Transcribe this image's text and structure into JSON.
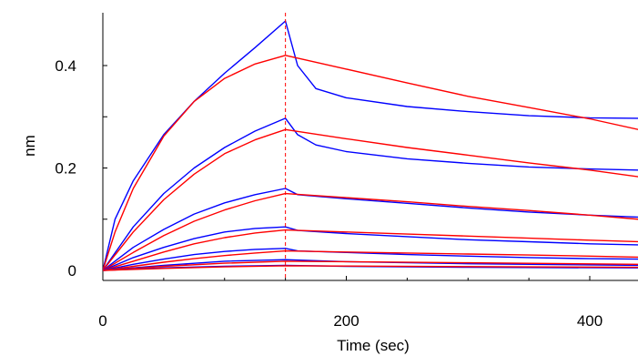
{
  "chart_data": {
    "type": "line",
    "title": "",
    "xlabel": "Time (sec)",
    "ylabel": "nm",
    "xlim": [
      0,
      440
    ],
    "ylim": [
      -0.01,
      0.495
    ],
    "x_ticks": [
      {
        "value": 0,
        "label": "0"
      },
      {
        "value": 200,
        "label": "200"
      },
      {
        "value": 400,
        "label": "400"
      }
    ],
    "y_ticks": [
      {
        "value": 0,
        "label": "0"
      },
      {
        "value": 0.2,
        "label": "0.2"
      },
      {
        "value": 0.4,
        "label": "0.4"
      }
    ],
    "grid": false,
    "legend": "none",
    "association_end_time": 150,
    "vline": {
      "x": 150,
      "color": "#ff0000",
      "style": "dashed"
    },
    "colors": {
      "measured": "#0000ff",
      "fit": "#ff0000"
    },
    "series": [
      {
        "kind": "measured",
        "color": "#0000ff",
        "points": [
          [
            0,
            0
          ],
          [
            10,
            0.1
          ],
          [
            25,
            0.175
          ],
          [
            50,
            0.265
          ],
          [
            75,
            0.33
          ],
          [
            100,
            0.385
          ],
          [
            125,
            0.435
          ],
          [
            150,
            0.487
          ],
          [
            160,
            0.4
          ],
          [
            175,
            0.355
          ],
          [
            200,
            0.337
          ],
          [
            250,
            0.32
          ],
          [
            300,
            0.31
          ],
          [
            350,
            0.302
          ],
          [
            400,
            0.298
          ],
          [
            440,
            0.297
          ]
        ]
      },
      {
        "kind": "fit",
        "color": "#ff0000",
        "points": [
          [
            0,
            0
          ],
          [
            10,
            0.075
          ],
          [
            25,
            0.16
          ],
          [
            50,
            0.262
          ],
          [
            75,
            0.33
          ],
          [
            100,
            0.375
          ],
          [
            125,
            0.403
          ],
          [
            150,
            0.42
          ],
          [
            200,
            0.393
          ],
          [
            250,
            0.366
          ],
          [
            300,
            0.34
          ],
          [
            350,
            0.318
          ],
          [
            400,
            0.296
          ],
          [
            440,
            0.275
          ]
        ]
      },
      {
        "kind": "measured",
        "color": "#0000ff",
        "points": [
          [
            0,
            0
          ],
          [
            25,
            0.085
          ],
          [
            50,
            0.15
          ],
          [
            75,
            0.2
          ],
          [
            100,
            0.24
          ],
          [
            125,
            0.272
          ],
          [
            150,
            0.297
          ],
          [
            160,
            0.265
          ],
          [
            175,
            0.245
          ],
          [
            200,
            0.232
          ],
          [
            250,
            0.218
          ],
          [
            300,
            0.209
          ],
          [
            350,
            0.202
          ],
          [
            400,
            0.198
          ],
          [
            440,
            0.196
          ]
        ]
      },
      {
        "kind": "fit",
        "color": "#ff0000",
        "points": [
          [
            0,
            0
          ],
          [
            25,
            0.075
          ],
          [
            50,
            0.138
          ],
          [
            75,
            0.188
          ],
          [
            100,
            0.228
          ],
          [
            125,
            0.255
          ],
          [
            150,
            0.275
          ],
          [
            200,
            0.257
          ],
          [
            250,
            0.24
          ],
          [
            300,
            0.225
          ],
          [
            350,
            0.21
          ],
          [
            400,
            0.196
          ],
          [
            440,
            0.183
          ]
        ]
      },
      {
        "kind": "measured",
        "color": "#0000ff",
        "points": [
          [
            0,
            0
          ],
          [
            25,
            0.045
          ],
          [
            50,
            0.08
          ],
          [
            75,
            0.11
          ],
          [
            100,
            0.132
          ],
          [
            125,
            0.148
          ],
          [
            150,
            0.16
          ],
          [
            160,
            0.148
          ],
          [
            200,
            0.14
          ],
          [
            250,
            0.131
          ],
          [
            300,
            0.122
          ],
          [
            350,
            0.114
          ],
          [
            400,
            0.108
          ],
          [
            440,
            0.104
          ]
        ]
      },
      {
        "kind": "fit",
        "color": "#ff0000",
        "points": [
          [
            0,
            0
          ],
          [
            25,
            0.035
          ],
          [
            50,
            0.068
          ],
          [
            75,
            0.096
          ],
          [
            100,
            0.118
          ],
          [
            125,
            0.136
          ],
          [
            150,
            0.15
          ],
          [
            200,
            0.142
          ],
          [
            250,
            0.134
          ],
          [
            300,
            0.125
          ],
          [
            350,
            0.117
          ],
          [
            400,
            0.108
          ],
          [
            440,
            0.1
          ]
        ]
      },
      {
        "kind": "measured",
        "color": "#0000ff",
        "points": [
          [
            0,
            0
          ],
          [
            25,
            0.025
          ],
          [
            50,
            0.045
          ],
          [
            75,
            0.062
          ],
          [
            100,
            0.075
          ],
          [
            125,
            0.082
          ],
          [
            150,
            0.085
          ],
          [
            160,
            0.078
          ],
          [
            200,
            0.072
          ],
          [
            250,
            0.066
          ],
          [
            300,
            0.06
          ],
          [
            350,
            0.056
          ],
          [
            400,
            0.052
          ],
          [
            440,
            0.05
          ]
        ]
      },
      {
        "kind": "fit",
        "color": "#ff0000",
        "points": [
          [
            0,
            0
          ],
          [
            25,
            0.018
          ],
          [
            50,
            0.036
          ],
          [
            75,
            0.052
          ],
          [
            100,
            0.064
          ],
          [
            125,
            0.073
          ],
          [
            150,
            0.079
          ],
          [
            200,
            0.075
          ],
          [
            250,
            0.071
          ],
          [
            300,
            0.067
          ],
          [
            350,
            0.063
          ],
          [
            400,
            0.059
          ],
          [
            440,
            0.056
          ]
        ]
      },
      {
        "kind": "measured",
        "color": "#0000ff",
        "points": [
          [
            0,
            0
          ],
          [
            25,
            0.012
          ],
          [
            50,
            0.022
          ],
          [
            75,
            0.031
          ],
          [
            100,
            0.037
          ],
          [
            125,
            0.041
          ],
          [
            150,
            0.043
          ],
          [
            160,
            0.038
          ],
          [
            200,
            0.035
          ],
          [
            250,
            0.031
          ],
          [
            300,
            0.028
          ],
          [
            350,
            0.025
          ],
          [
            400,
            0.023
          ],
          [
            440,
            0.022
          ]
        ]
      },
      {
        "kind": "fit",
        "color": "#ff0000",
        "points": [
          [
            0,
            0
          ],
          [
            25,
            0.008
          ],
          [
            50,
            0.016
          ],
          [
            75,
            0.023
          ],
          [
            100,
            0.029
          ],
          [
            125,
            0.034
          ],
          [
            150,
            0.038
          ],
          [
            200,
            0.036
          ],
          [
            250,
            0.034
          ],
          [
            300,
            0.032
          ],
          [
            350,
            0.03
          ],
          [
            400,
            0.028
          ],
          [
            440,
            0.026
          ]
        ]
      },
      {
        "kind": "measured",
        "color": "#0000ff",
        "points": [
          [
            0,
            0
          ],
          [
            50,
            0.01
          ],
          [
            100,
            0.018
          ],
          [
            150,
            0.021
          ],
          [
            200,
            0.017
          ],
          [
            300,
            0.013
          ],
          [
            440,
            0.01
          ]
        ]
      },
      {
        "kind": "fit",
        "color": "#ff0000",
        "points": [
          [
            0,
            0
          ],
          [
            50,
            0.008
          ],
          [
            100,
            0.014
          ],
          [
            150,
            0.018
          ],
          [
            200,
            0.017
          ],
          [
            300,
            0.015
          ],
          [
            440,
            0.012
          ]
        ]
      },
      {
        "kind": "measured",
        "color": "#0000ff",
        "points": [
          [
            0,
            0
          ],
          [
            50,
            0.005
          ],
          [
            100,
            0.008
          ],
          [
            150,
            0.01
          ],
          [
            200,
            0.008
          ],
          [
            300,
            0.006
          ],
          [
            440,
            0.005
          ]
        ]
      },
      {
        "kind": "fit",
        "color": "#ff0000",
        "points": [
          [
            0,
            0
          ],
          [
            50,
            0.004
          ],
          [
            100,
            0.007
          ],
          [
            150,
            0.009
          ],
          [
            200,
            0.0085
          ],
          [
            300,
            0.0075
          ],
          [
            440,
            0.006
          ]
        ]
      }
    ]
  }
}
